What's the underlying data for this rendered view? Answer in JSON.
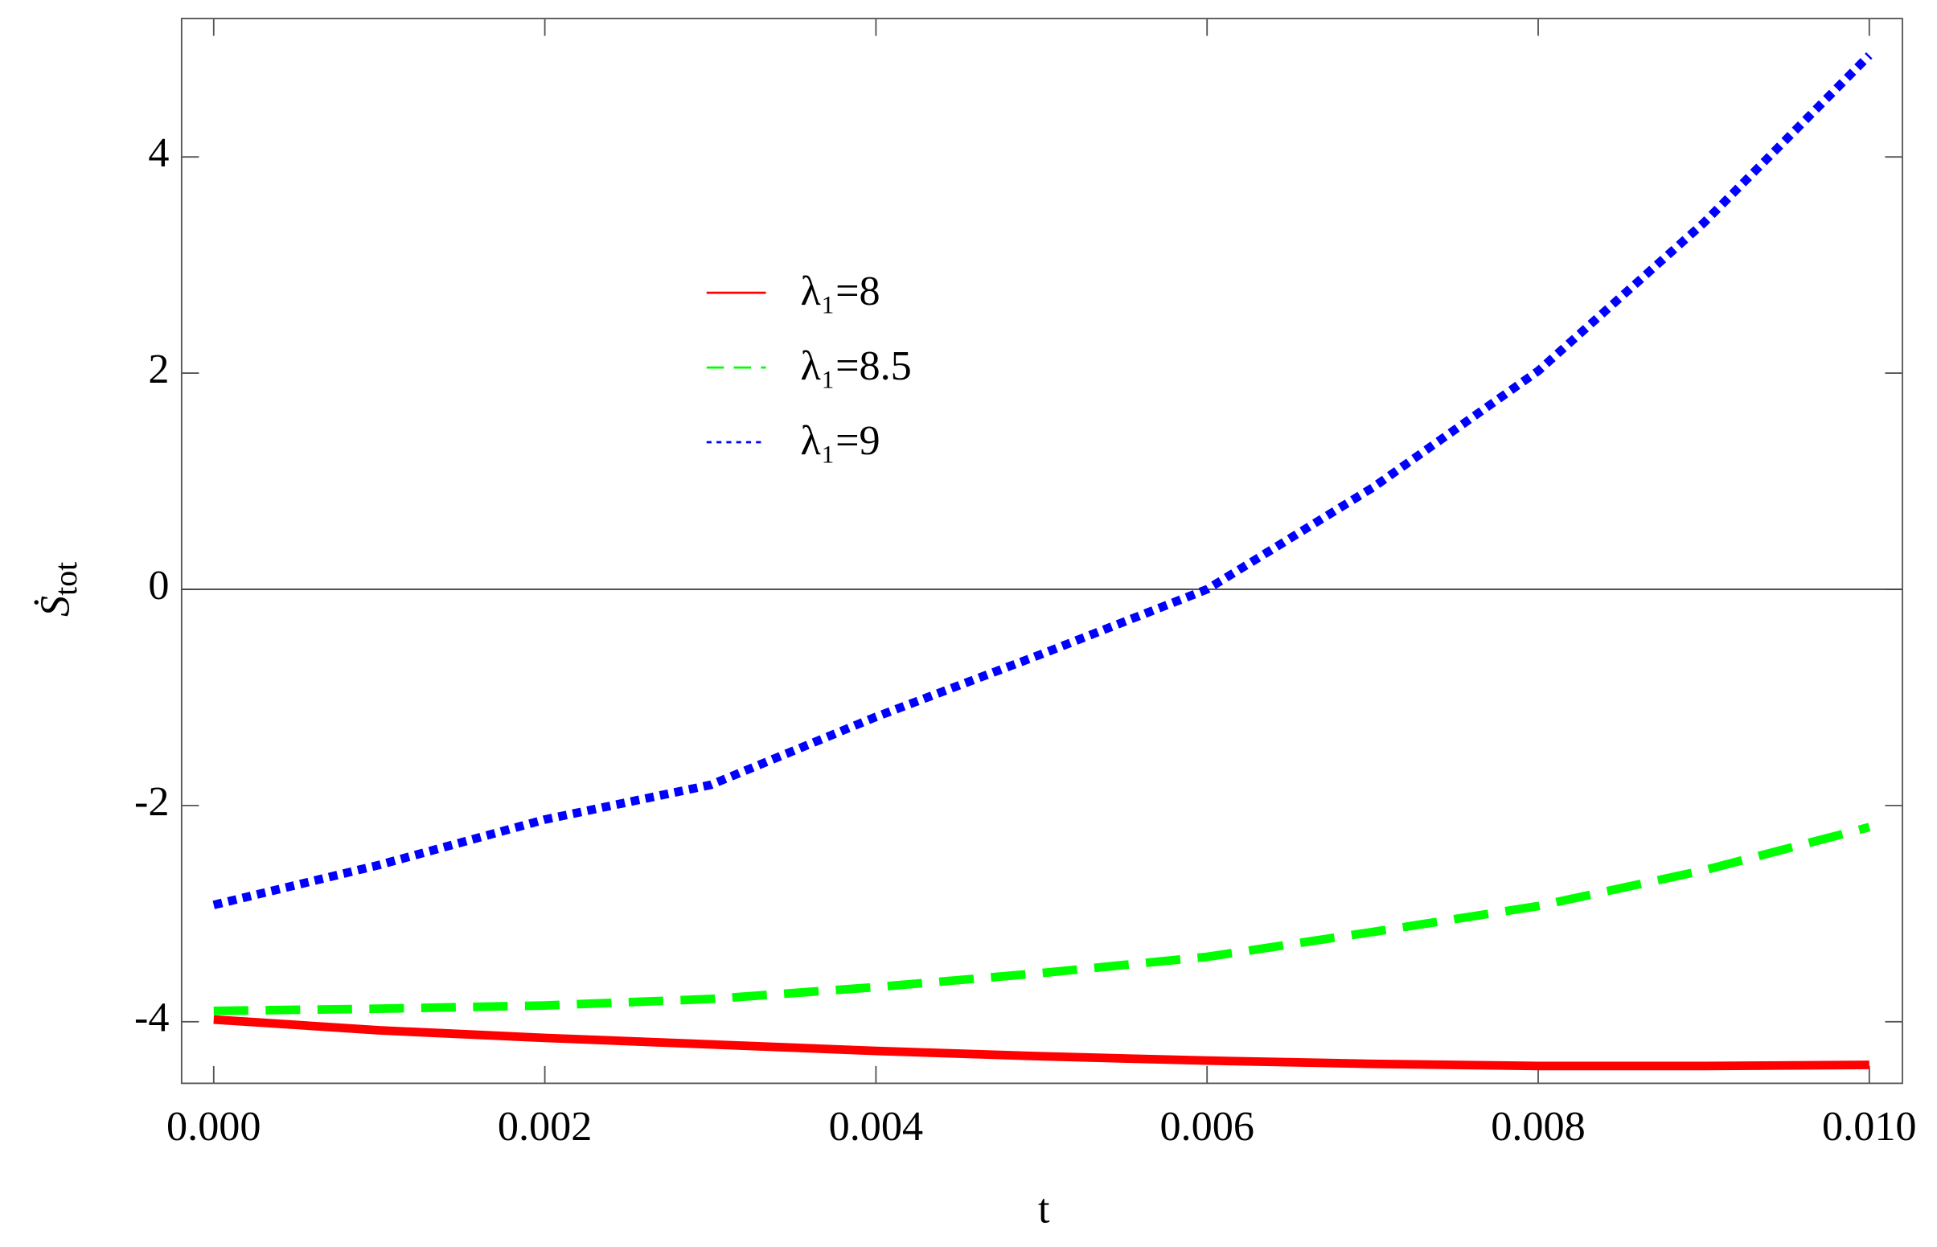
{
  "chart_data": {
    "type": "line",
    "x_label": "t",
    "y_label": "Ṡ",
    "y_label_sub": "tot",
    "x": [
      0,
      0.001,
      0.002,
      0.003,
      0.004,
      0.005,
      0.006,
      0.007,
      0.008,
      0.009,
      0.01
    ],
    "series": [
      {
        "name": "λ₁=8",
        "color": "#ff0000",
        "style": "solid",
        "values": [
          -3.98,
          -4.08,
          -4.15,
          -4.21,
          -4.27,
          -4.32,
          -4.36,
          -4.39,
          -4.41,
          -4.41,
          -4.4
        ]
      },
      {
        "name": "λ₁=8.5",
        "color": "#00ff00",
        "style": "dashed",
        "values": [
          -3.9,
          -3.88,
          -3.85,
          -3.79,
          -3.68,
          -3.55,
          -3.4,
          -3.17,
          -2.93,
          -2.6,
          -2.2
        ]
      },
      {
        "name": "λ₁=9",
        "color": "#0000ff",
        "style": "dotted",
        "values": [
          -2.92,
          -2.55,
          -2.13,
          -1.81,
          -1.18,
          -0.6,
          0,
          0.94,
          2.02,
          3.39,
          4.94
        ]
      }
    ],
    "xlim": [
      -0.000194,
      0.0102
    ],
    "ylim": [
      -4.57,
      5.28
    ],
    "xticks": [
      {
        "value": 0,
        "label": "0.000"
      },
      {
        "value": 0.002,
        "label": "0.002"
      },
      {
        "value": 0.004,
        "label": "0.004"
      },
      {
        "value": 0.006,
        "label": "0.006"
      },
      {
        "value": 0.008,
        "label": "0.008"
      },
      {
        "value": 0.01,
        "label": "0.010"
      }
    ],
    "yticks": [
      -4,
      -2,
      0,
      2,
      4
    ],
    "zero_line": true,
    "grid": false,
    "legend": "upper center"
  }
}
